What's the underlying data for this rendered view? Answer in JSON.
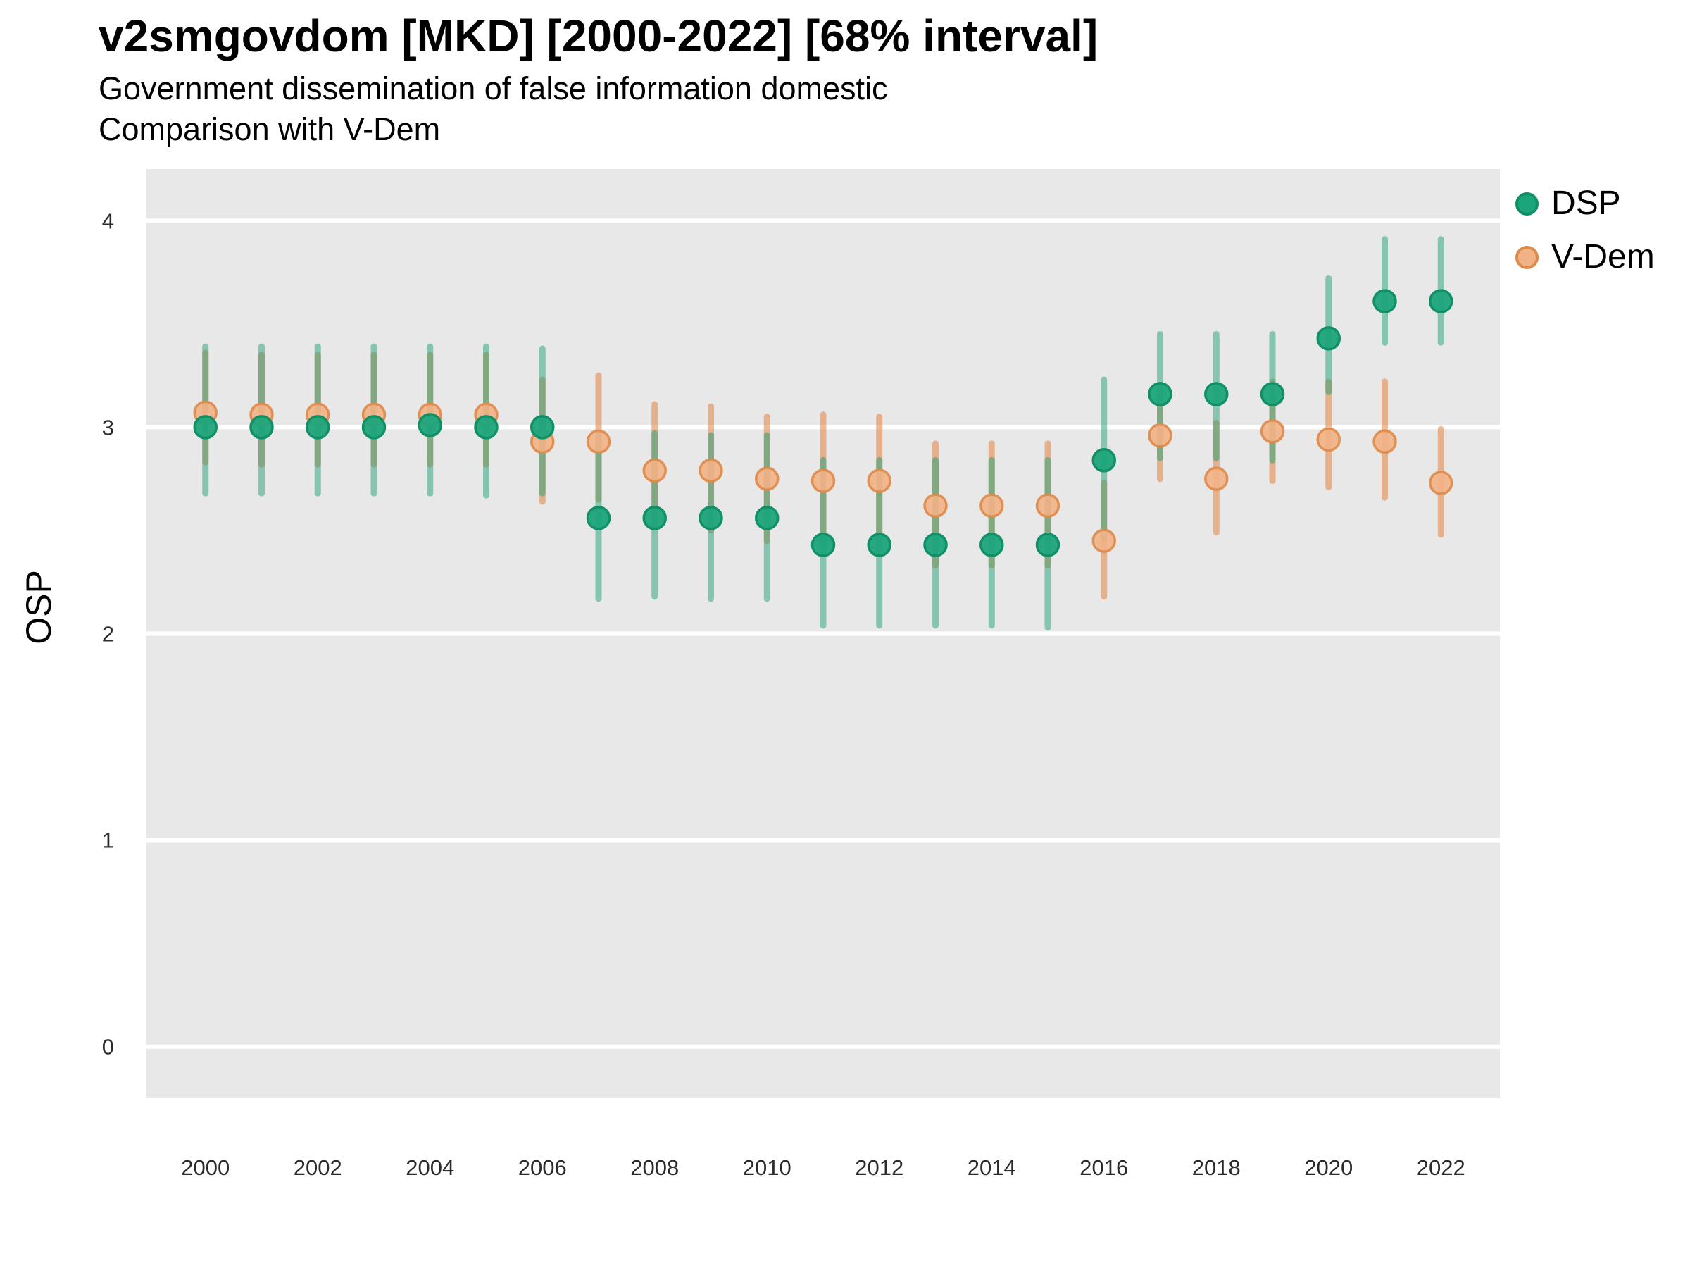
{
  "title": "v2smgovdom [MKD] [2000-2022] [68% interval]",
  "subtitle_line1": "Government dissemination of false information domestic",
  "subtitle_line2": "Comparison with V-Dem",
  "axes": {
    "y_label": "OSP",
    "y_ticks": [
      4,
      3,
      2,
      1,
      0
    ],
    "x_ticks": [
      2000,
      2002,
      2004,
      2006,
      2008,
      2010,
      2012,
      2014,
      2016,
      2018,
      2020,
      2022
    ]
  },
  "legend": {
    "items": [
      {
        "label": "DSP",
        "fill": "#1CA47B",
        "stroke": "#0F9066"
      },
      {
        "label": "V-Dem",
        "fill": "#F1B286",
        "stroke": "#DE8A49"
      }
    ]
  },
  "colors": {
    "panel_background": "#E8E8E8",
    "gridline": "#FFFFFF",
    "dsp_point_fill": "#1CA47B",
    "dsp_point_stroke": "#0F9066",
    "dsp_interval": "rgba(31,160,120,0.50)",
    "vdem_point_fill": "#F1B286",
    "vdem_point_stroke": "#DE8A49",
    "vdem_interval": "rgba(226,129,63,0.55)"
  },
  "chart_data": {
    "type": "pointrange",
    "title": "v2smgovdom [MKD] [2000-2022] [68% interval]",
    "xlabel": "",
    "ylabel": "OSP",
    "xlim": [
      1998.95,
      2023.05
    ],
    "ylim": [
      -0.25,
      4.25
    ],
    "grid": "major-horizontal-white-on-gray",
    "legend_position": "right",
    "x": [
      2000,
      2001,
      2002,
      2003,
      2004,
      2005,
      2006,
      2007,
      2008,
      2009,
      2010,
      2011,
      2012,
      2013,
      2014,
      2015,
      2016,
      2017,
      2018,
      2019,
      2020,
      2021,
      2022
    ],
    "series": [
      {
        "name": "DSP",
        "values": [
          3.0,
          3.0,
          3.0,
          3.0,
          3.01,
          3.0,
          3.0,
          2.56,
          2.56,
          2.56,
          2.56,
          2.43,
          2.43,
          2.43,
          2.43,
          2.43,
          2.84,
          3.16,
          3.16,
          3.16,
          3.43,
          3.61,
          3.61
        ],
        "lower": [
          2.68,
          2.68,
          2.68,
          2.68,
          2.68,
          2.67,
          2.68,
          2.17,
          2.18,
          2.17,
          2.17,
          2.04,
          2.04,
          2.04,
          2.04,
          2.03,
          2.46,
          2.85,
          2.85,
          2.84,
          3.17,
          3.41,
          3.41
        ],
        "upper": [
          3.39,
          3.39,
          3.39,
          3.39,
          3.39,
          3.39,
          3.38,
          2.96,
          2.97,
          2.96,
          2.96,
          2.84,
          2.84,
          2.84,
          2.84,
          2.84,
          3.23,
          3.45,
          3.45,
          3.45,
          3.72,
          3.91,
          3.91
        ]
      },
      {
        "name": "V-Dem",
        "values": [
          3.07,
          3.06,
          3.06,
          3.06,
          3.06,
          3.06,
          2.93,
          2.93,
          2.79,
          2.79,
          2.75,
          2.74,
          2.74,
          2.62,
          2.62,
          2.62,
          2.45,
          2.96,
          2.75,
          2.98,
          2.94,
          2.93,
          2.73
        ],
        "lower": [
          2.83,
          2.82,
          2.82,
          2.82,
          2.82,
          2.82,
          2.64,
          2.65,
          2.52,
          2.5,
          2.45,
          2.44,
          2.44,
          2.33,
          2.33,
          2.33,
          2.18,
          2.75,
          2.49,
          2.74,
          2.71,
          2.66,
          2.48
        ],
        "upper": [
          3.36,
          3.35,
          3.35,
          3.35,
          3.35,
          3.35,
          3.23,
          3.25,
          3.11,
          3.1,
          3.05,
          3.06,
          3.05,
          2.92,
          2.92,
          2.92,
          2.73,
          3.17,
          3.02,
          3.22,
          3.22,
          3.22,
          2.99
        ]
      }
    ]
  }
}
